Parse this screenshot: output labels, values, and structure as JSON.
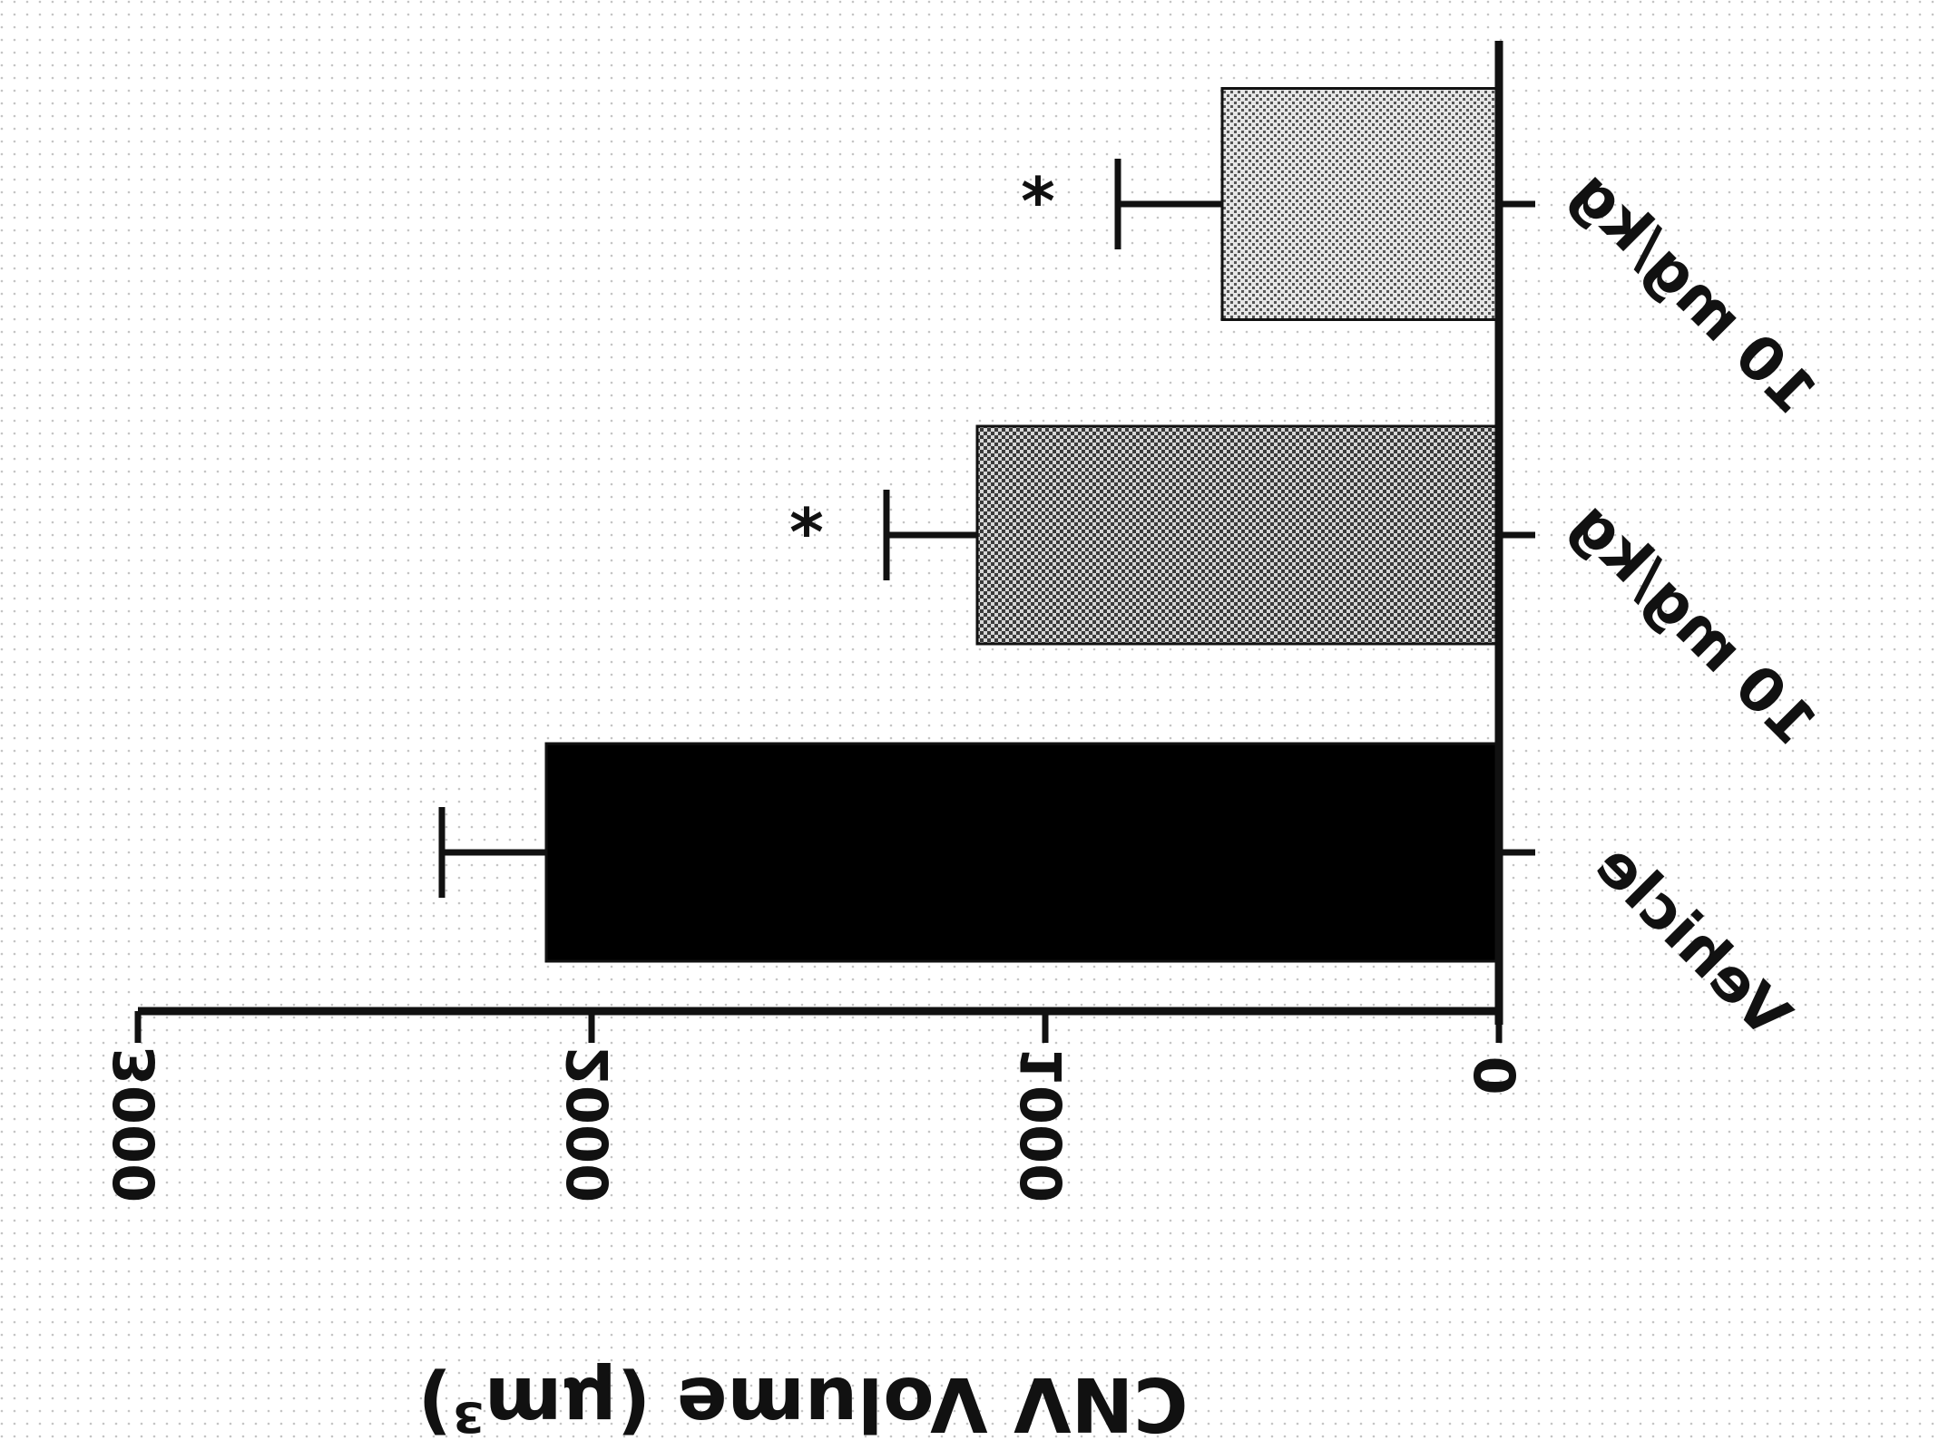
{
  "chart_data": {
    "type": "bar",
    "orientation": "horizontal-mirrored",
    "categories": [
      "Vehicle",
      "10 mg/kg",
      "10 mg/kg"
    ],
    "values": [
      2100,
      1150,
      610
    ],
    "errors": [
      230,
      200,
      230
    ],
    "significance": [
      "",
      "*",
      "*"
    ],
    "tick_labels": [
      "0",
      "1000",
      "2000",
      "3000"
    ],
    "xlabel": "CNV Volume (µm³)",
    "xlim": [
      0,
      3000
    ],
    "colors": {
      "vehicle": "#000000",
      "treated_high": "#8a8a8a",
      "treated_low": "#a8a8a8",
      "axis": "#111111",
      "dot_grid": "#bdbdbd"
    },
    "grid": "dotted background",
    "mirrored": true
  }
}
